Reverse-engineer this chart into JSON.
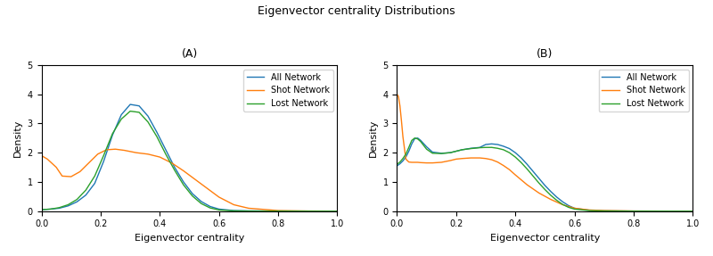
{
  "title": "Eigenvector centrality Distributions",
  "panel_A_label": "(A)",
  "panel_B_label": "(B)",
  "xlabel": "Eigenvector centrality",
  "ylabel": "Density",
  "xlim": [
    0.0,
    1.0
  ],
  "ylim": [
    0.0,
    5.0
  ],
  "yticks": [
    0,
    1,
    2,
    3,
    4,
    5
  ],
  "xticks": [
    0.0,
    0.2,
    0.4,
    0.6,
    0.8,
    1.0
  ],
  "colors": {
    "all": "#1f77b4",
    "shot": "#ff7f0e",
    "lost": "#2ca02c"
  },
  "panel_A": {
    "all_x": [
      0.0,
      0.03,
      0.06,
      0.09,
      0.12,
      0.15,
      0.18,
      0.21,
      0.24,
      0.27,
      0.3,
      0.33,
      0.36,
      0.39,
      0.42,
      0.45,
      0.48,
      0.51,
      0.54,
      0.57,
      0.6,
      0.65,
      0.7,
      0.8,
      0.9,
      1.0
    ],
    "all_y": [
      0.05,
      0.07,
      0.1,
      0.18,
      0.32,
      0.55,
      0.95,
      1.7,
      2.6,
      3.3,
      3.65,
      3.6,
      3.25,
      2.7,
      2.1,
      1.5,
      1.0,
      0.6,
      0.33,
      0.16,
      0.07,
      0.02,
      0.01,
      0.003,
      0.001,
      0.0
    ],
    "shot_x": [
      0.0,
      0.02,
      0.05,
      0.07,
      0.1,
      0.13,
      0.16,
      0.19,
      0.22,
      0.25,
      0.28,
      0.32,
      0.36,
      0.4,
      0.44,
      0.48,
      0.52,
      0.56,
      0.6,
      0.65,
      0.7,
      0.8,
      0.9,
      1.0
    ],
    "shot_y": [
      1.9,
      1.78,
      1.5,
      1.2,
      1.18,
      1.35,
      1.65,
      1.95,
      2.1,
      2.12,
      2.08,
      2.0,
      1.95,
      1.85,
      1.65,
      1.38,
      1.08,
      0.78,
      0.48,
      0.22,
      0.1,
      0.02,
      0.005,
      0.0
    ],
    "lost_x": [
      0.0,
      0.03,
      0.06,
      0.09,
      0.12,
      0.15,
      0.18,
      0.21,
      0.24,
      0.27,
      0.3,
      0.33,
      0.36,
      0.39,
      0.42,
      0.45,
      0.48,
      0.51,
      0.54,
      0.57,
      0.6,
      0.65,
      0.7,
      0.8,
      0.9,
      1.0
    ],
    "lost_y": [
      0.05,
      0.07,
      0.12,
      0.22,
      0.4,
      0.72,
      1.2,
      1.9,
      2.65,
      3.15,
      3.42,
      3.38,
      3.05,
      2.55,
      1.95,
      1.4,
      0.9,
      0.52,
      0.26,
      0.11,
      0.04,
      0.01,
      0.003,
      0.001,
      0.0,
      0.0
    ]
  },
  "panel_B": {
    "all_x": [
      0.0,
      0.01,
      0.02,
      0.03,
      0.04,
      0.05,
      0.06,
      0.07,
      0.08,
      0.1,
      0.12,
      0.15,
      0.18,
      0.2,
      0.22,
      0.25,
      0.28,
      0.3,
      0.32,
      0.34,
      0.36,
      0.38,
      0.4,
      0.42,
      0.44,
      0.46,
      0.48,
      0.5,
      0.52,
      0.54,
      0.56,
      0.58,
      0.6,
      0.65,
      0.7,
      0.8,
      0.9,
      1.0
    ],
    "all_y": [
      1.55,
      1.62,
      1.72,
      1.85,
      2.05,
      2.3,
      2.48,
      2.5,
      2.42,
      2.2,
      2.02,
      1.98,
      2.0,
      2.05,
      2.1,
      2.15,
      2.18,
      2.28,
      2.3,
      2.28,
      2.22,
      2.14,
      2.0,
      1.82,
      1.6,
      1.36,
      1.12,
      0.88,
      0.67,
      0.48,
      0.32,
      0.19,
      0.1,
      0.03,
      0.01,
      0.002,
      0.001,
      0.0
    ],
    "shot_x": [
      0.0,
      0.005,
      0.01,
      0.015,
      0.02,
      0.03,
      0.04,
      0.05,
      0.06,
      0.07,
      0.08,
      0.1,
      0.12,
      0.15,
      0.18,
      0.2,
      0.22,
      0.25,
      0.28,
      0.3,
      0.32,
      0.34,
      0.36,
      0.38,
      0.4,
      0.44,
      0.48,
      0.52,
      0.56,
      0.6,
      0.65,
      0.7,
      0.8,
      0.9,
      1.0
    ],
    "shot_y": [
      4.0,
      3.92,
      3.6,
      3.1,
      2.55,
      1.78,
      1.68,
      1.67,
      1.67,
      1.67,
      1.66,
      1.65,
      1.65,
      1.67,
      1.73,
      1.78,
      1.8,
      1.82,
      1.82,
      1.8,
      1.76,
      1.68,
      1.56,
      1.42,
      1.24,
      0.9,
      0.62,
      0.4,
      0.22,
      0.1,
      0.04,
      0.02,
      0.005,
      0.001,
      0.0
    ],
    "lost_x": [
      0.0,
      0.01,
      0.02,
      0.03,
      0.04,
      0.05,
      0.06,
      0.07,
      0.08,
      0.1,
      0.12,
      0.15,
      0.18,
      0.2,
      0.22,
      0.25,
      0.28,
      0.3,
      0.32,
      0.34,
      0.36,
      0.38,
      0.4,
      0.42,
      0.44,
      0.46,
      0.48,
      0.5,
      0.52,
      0.54,
      0.56,
      0.58,
      0.6,
      0.65,
      0.7,
      0.8,
      0.9,
      1.0
    ],
    "lost_y": [
      1.6,
      1.68,
      1.8,
      1.95,
      2.18,
      2.42,
      2.5,
      2.47,
      2.38,
      2.12,
      1.98,
      1.97,
      2.0,
      2.05,
      2.1,
      2.14,
      2.17,
      2.18,
      2.18,
      2.15,
      2.1,
      2.0,
      1.85,
      1.66,
      1.44,
      1.2,
      0.96,
      0.74,
      0.54,
      0.37,
      0.23,
      0.13,
      0.07,
      0.02,
      0.006,
      0.001,
      0.0,
      0.0
    ]
  }
}
